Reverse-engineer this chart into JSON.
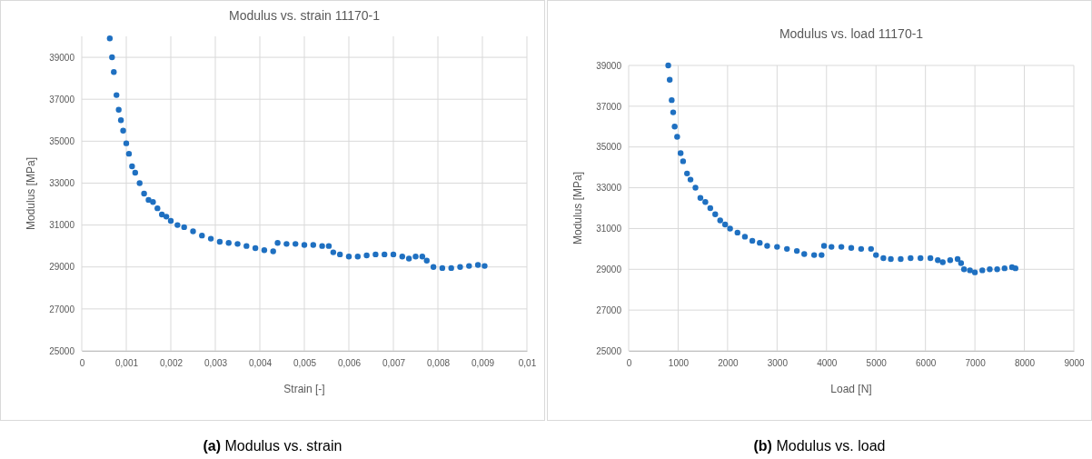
{
  "chart_data": [
    {
      "type": "scatter",
      "title": "Modulus vs. strain 11170-1",
      "xlabel": "Strain [-]",
      "ylabel": "Modulus [MPa]",
      "annotations": [
        "(a) Modulus vs. strain"
      ],
      "marker": "circle",
      "grid": true,
      "legend": false,
      "xlim": [
        0,
        0.01
      ],
      "xticks": [
        0,
        {
          "value": 0.001,
          "label": "0,001"
        },
        {
          "value": 0.002,
          "label": "0,002"
        },
        {
          "value": 0.003,
          "label": "0,003"
        },
        {
          "value": 0.004,
          "label": "0,004"
        },
        {
          "value": 0.005,
          "label": "0,005"
        },
        {
          "value": 0.006,
          "label": "0,006"
        },
        {
          "value": 0.007,
          "label": "0,007"
        },
        {
          "value": 0.008,
          "label": "0,008"
        },
        {
          "value": 0.009,
          "label": "0,009"
        },
        {
          "value": 0.01,
          "label": "0,01"
        }
      ],
      "ylim": [
        25000,
        40000
      ],
      "yticks": [
        25000,
        27000,
        29000,
        31000,
        33000,
        35000,
        37000,
        39000
      ],
      "series": [
        {
          "color": "#1f70c1",
          "x": [
            0.00063,
            0.00068,
            0.00072,
            0.00078,
            0.00083,
            0.00088,
            0.00093,
            0.001,
            0.00106,
            0.00113,
            0.0012,
            0.0013,
            0.0014,
            0.0015,
            0.0016,
            0.0017,
            0.0018,
            0.0019,
            0.002,
            0.00215,
            0.0023,
            0.0025,
            0.0027,
            0.0029,
            0.0031,
            0.0033,
            0.0035,
            0.0037,
            0.0039,
            0.0041,
            0.0043,
            0.0044,
            0.0046,
            0.0048,
            0.005,
            0.0052,
            0.0054,
            0.00555,
            0.00565,
            0.0058,
            0.006,
            0.0062,
            0.0064,
            0.0066,
            0.0068,
            0.007,
            0.0072,
            0.00735,
            0.0075,
            0.00765,
            0.00775,
            0.0079,
            0.0081,
            0.0083,
            0.0085,
            0.0087,
            0.0089,
            0.00905
          ],
          "values": [
            39900,
            39000,
            38300,
            37200,
            36500,
            36000,
            35500,
            34900,
            34400,
            33800,
            33500,
            33000,
            32500,
            32200,
            32100,
            31800,
            31500,
            31400,
            31200,
            31000,
            30900,
            30700,
            30500,
            30350,
            30200,
            30150,
            30100,
            30000,
            29900,
            29800,
            29750,
            30150,
            30100,
            30100,
            30050,
            30050,
            30000,
            30000,
            29700,
            29600,
            29500,
            29500,
            29550,
            29600,
            29600,
            29600,
            29500,
            29400,
            29500,
            29500,
            29300,
            29000,
            28950,
            28950,
            29000,
            29050,
            29100,
            29050
          ]
        }
      ]
    },
    {
      "type": "scatter",
      "title": "Modulus vs. load 11170-1",
      "xlabel": "Load [N]",
      "ylabel": "Modulus [MPa]",
      "annotations": [
        "(b) Modulus vs. load"
      ],
      "marker": "circle",
      "grid": true,
      "legend": false,
      "xlim": [
        0,
        9000
      ],
      "xticks": [
        0,
        1000,
        2000,
        3000,
        4000,
        5000,
        6000,
        7000,
        8000,
        9000
      ],
      "ylim": [
        25000,
        39000
      ],
      "yticks": [
        25000,
        27000,
        29000,
        31000,
        33000,
        35000,
        37000,
        39000
      ],
      "series": [
        {
          "color": "#1f70c1",
          "x": [
            800,
            830,
            870,
            900,
            930,
            980,
            1050,
            1100,
            1180,
            1250,
            1350,
            1450,
            1550,
            1650,
            1750,
            1850,
            1950,
            2050,
            2200,
            2350,
            2500,
            2650,
            2800,
            3000,
            3200,
            3400,
            3550,
            3750,
            3900,
            3950,
            4100,
            4300,
            4500,
            4700,
            4900,
            5000,
            5150,
            5300,
            5500,
            5700,
            5900,
            6100,
            6250,
            6350,
            6500,
            6650,
            6720,
            6780,
            6900,
            7000,
            7150,
            7300,
            7450,
            7600,
            7750,
            7820
          ],
          "values": [
            39000,
            38300,
            37300,
            36700,
            36000,
            35500,
            34700,
            34300,
            33700,
            33400,
            33000,
            32500,
            32300,
            32000,
            31700,
            31400,
            31200,
            31000,
            30800,
            30600,
            30400,
            30300,
            30150,
            30100,
            30000,
            29900,
            29750,
            29700,
            29700,
            30150,
            30100,
            30100,
            30050,
            30000,
            30000,
            29700,
            29550,
            29500,
            29500,
            29550,
            29550,
            29550,
            29450,
            29350,
            29450,
            29500,
            29300,
            29000,
            28950,
            28850,
            28950,
            29000,
            29000,
            29050,
            29100,
            29050
          ]
        }
      ]
    }
  ]
}
